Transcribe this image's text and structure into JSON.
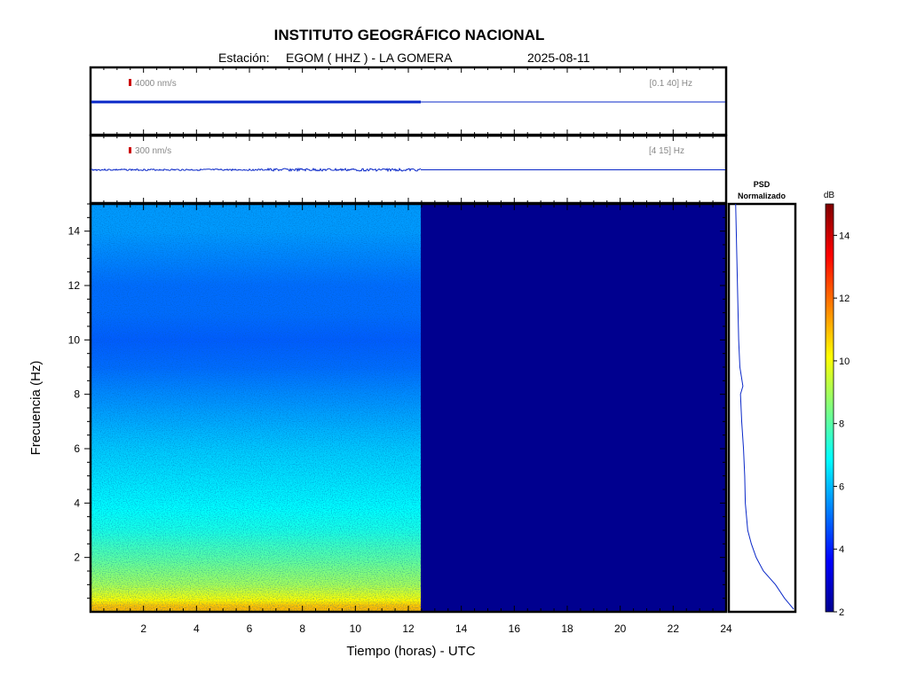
{
  "header": {
    "title": "INSTITUTO GEOGRÁFICO NACIONAL",
    "station_label": "Estación:",
    "station": "EGOM ( HHZ ) - LA GOMERA",
    "date": "2025-08-11"
  },
  "chart_data": [
    {
      "type": "line",
      "panel": "seismogram-broadband",
      "scale_label": "4000 nm/s",
      "filter_label": "[0.1 40] Hz",
      "data_until_hours": 12.5,
      "xlim": [
        0,
        24
      ]
    },
    {
      "type": "line",
      "panel": "seismogram-filtered",
      "scale_label": "300 nm/s",
      "filter_label": "[4 15] Hz",
      "data_until_hours": 12.5,
      "xlim": [
        0,
        24
      ]
    },
    {
      "type": "heatmap",
      "panel": "spectrogram",
      "xlabel": "Tiempo (horas) - UTC",
      "ylabel": "Frecuencia  (Hz)",
      "xlim": [
        0,
        24
      ],
      "ylim": [
        0,
        15
      ],
      "xticks": [
        2,
        4,
        6,
        8,
        10,
        12,
        14,
        16,
        18,
        20,
        22,
        24
      ],
      "yticks": [
        2,
        4,
        6,
        8,
        10,
        12,
        14
      ],
      "data_until_hours": 12.5,
      "empty_value_db": 2,
      "colorscale": "jet",
      "power_db_by_frequency": {
        "frequency_hz": [
          0.2,
          0.5,
          1,
          1.5,
          2,
          3,
          4,
          5,
          6,
          7,
          8,
          9,
          10,
          11,
          12,
          13,
          14,
          15
        ],
        "db": [
          11,
          10,
          9,
          8.5,
          8,
          7.2,
          6.8,
          6.5,
          6.2,
          5.8,
          5.4,
          5.0,
          4.8,
          5.0,
          5.0,
          5.3,
          5.6,
          5.6
        ]
      }
    },
    {
      "type": "line",
      "panel": "psd",
      "title": "PSD\nNormalizado",
      "title_line1": "PSD",
      "title_line2": "Normalizado",
      "frequency_hz": [
        0.1,
        0.5,
        1,
        1.5,
        2,
        2.5,
        3,
        4,
        5,
        6,
        7,
        8,
        8.3,
        9,
        10,
        11,
        12,
        13,
        14,
        15
      ],
      "psd_normalized": [
        1.0,
        0.85,
        0.7,
        0.5,
        0.38,
        0.3,
        0.24,
        0.2,
        0.19,
        0.17,
        0.14,
        0.12,
        0.16,
        0.11,
        0.09,
        0.08,
        0.07,
        0.06,
        0.05,
        0.04
      ]
    },
    {
      "type": "heatmap",
      "panel": "colorbar",
      "title": "dB",
      "ylim": [
        2,
        15
      ],
      "ticks": [
        2,
        4,
        6,
        8,
        10,
        12,
        14
      ]
    }
  ]
}
